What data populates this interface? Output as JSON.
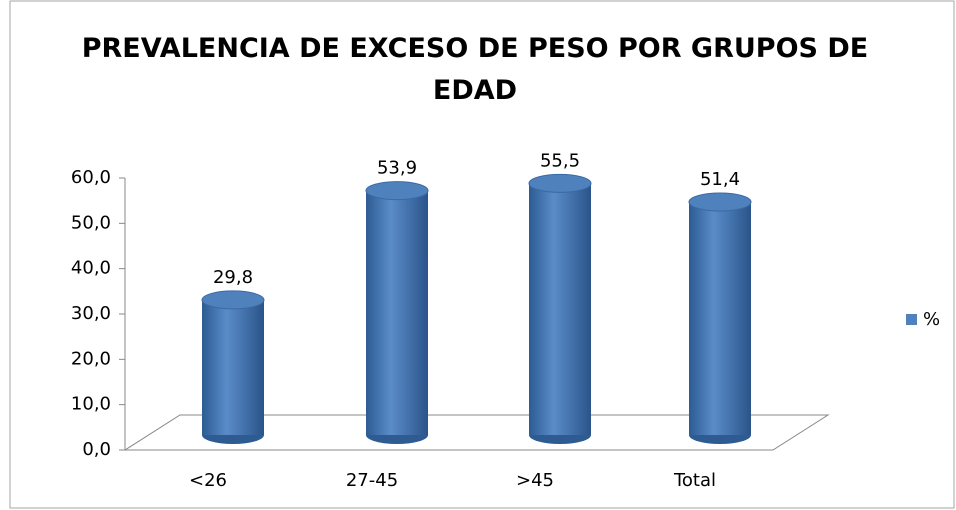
{
  "chart_data": {
    "type": "bar",
    "title": "PREVALENCIA DE EXCESO DE PESO POR GRUPOS DE EDAD",
    "categories": [
      "<26",
      "27-45",
      ">45",
      "Total"
    ],
    "series": [
      {
        "name": "%",
        "color": "#4f81bd",
        "values": [
          29.8,
          53.9,
          55.5,
          51.4
        ],
        "value_labels": [
          "29,8",
          "53,9",
          "55,5",
          "51,4"
        ]
      }
    ],
    "ylim": [
      0,
      60
    ],
    "yticks": [
      {
        "value": 0,
        "label": "0,0"
      },
      {
        "value": 10,
        "label": "10,0"
      },
      {
        "value": 20,
        "label": "20,0"
      },
      {
        "value": 30,
        "label": "30,0"
      },
      {
        "value": 40,
        "label": "40,0"
      },
      {
        "value": 50,
        "label": "50,0"
      },
      {
        "value": 60,
        "label": "60,0"
      }
    ],
    "legend": "right"
  }
}
